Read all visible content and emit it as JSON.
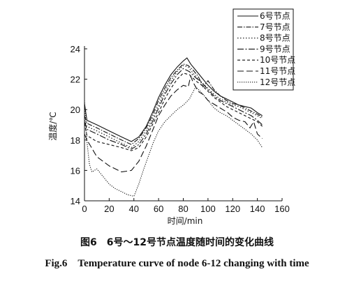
{
  "caption": {
    "cn": "图6　6号～12号节点温度随时间的变化曲线",
    "en": "Fig.6　Temperature curve of node 6-12 changing with time"
  },
  "chart_data": {
    "type": "line",
    "title": "",
    "xlabel": "时间/min",
    "ylabel": "温度/℃",
    "xlim": [
      0,
      160
    ],
    "ylim": [
      14,
      24
    ],
    "xticks": [
      0,
      20,
      40,
      60,
      80,
      100,
      120,
      140,
      160
    ],
    "yticks": [
      14,
      16,
      18,
      20,
      22,
      24
    ],
    "grid": false,
    "legend_position": "top-right",
    "series": [
      {
        "name": "6号节点",
        "dash": "solid",
        "x": [
          0,
          2,
          10,
          20,
          30,
          38,
          44,
          50,
          55,
          60,
          65,
          70,
          75,
          80,
          83,
          86,
          90,
          95,
          100,
          105,
          110,
          115,
          120,
          125,
          130,
          135,
          140,
          144
        ],
        "y": [
          20.4,
          19.3,
          19.0,
          18.6,
          18.2,
          17.9,
          18.2,
          18.9,
          19.8,
          20.8,
          21.6,
          22.3,
          22.8,
          23.2,
          23.4,
          23.0,
          22.6,
          22.1,
          21.6,
          21.2,
          20.9,
          20.7,
          20.5,
          20.3,
          20.2,
          20.1,
          19.8,
          19.6
        ]
      },
      {
        "name": "7号节点",
        "dash": "dashdot",
        "x": [
          0,
          2,
          10,
          20,
          30,
          38,
          44,
          50,
          55,
          60,
          65,
          70,
          75,
          80,
          84,
          88,
          92,
          96,
          100,
          105,
          110,
          115,
          120,
          125,
          130,
          135,
          140,
          144
        ],
        "y": [
          19.6,
          19.1,
          18.8,
          18.4,
          18.0,
          17.7,
          18.1,
          18.8,
          19.6,
          20.6,
          21.4,
          22.1,
          22.6,
          23.0,
          22.9,
          22.6,
          22.2,
          21.5,
          21.9,
          21.3,
          20.9,
          20.6,
          20.4,
          20.3,
          20.1,
          19.9,
          19.7,
          19.5
        ]
      },
      {
        "name": "8号节点",
        "dash": "dotted",
        "x": [
          0,
          2,
          10,
          20,
          30,
          38,
          44,
          50,
          55,
          60,
          65,
          70,
          75,
          80,
          84,
          88,
          92,
          96,
          100,
          105,
          110,
          115,
          120,
          125,
          130,
          135,
          140,
          144
        ],
        "y": [
          19.3,
          18.9,
          18.6,
          18.2,
          17.8,
          17.5,
          17.9,
          18.6,
          19.4,
          20.3,
          21.2,
          21.9,
          22.5,
          22.9,
          22.8,
          22.4,
          22.0,
          21.7,
          21.4,
          21.0,
          20.7,
          20.5,
          20.3,
          20.2,
          20.0,
          19.8,
          19.6,
          19.4
        ]
      },
      {
        "name": "9号节点",
        "dash": "longdash-dot",
        "x": [
          0,
          2,
          10,
          20,
          30,
          38,
          44,
          50,
          55,
          60,
          65,
          70,
          75,
          80,
          85,
          90,
          95,
          100,
          105,
          110,
          115,
          120,
          125,
          130,
          135,
          140,
          144
        ],
        "y": [
          19.2,
          18.7,
          18.4,
          18.0,
          17.7,
          17.4,
          17.7,
          18.4,
          19.2,
          20.1,
          21.0,
          21.7,
          22.3,
          22.7,
          22.5,
          22.1,
          21.8,
          21.3,
          20.9,
          20.6,
          20.4,
          20.2,
          20.0,
          19.8,
          19.6,
          19.3,
          19.0
        ]
      },
      {
        "name": "10号节点",
        "dash": "dashed",
        "x": [
          0,
          2,
          10,
          20,
          30,
          38,
          44,
          50,
          55,
          60,
          65,
          70,
          75,
          80,
          85,
          90,
          95,
          100,
          105,
          110,
          115,
          120,
          125,
          130,
          135,
          140,
          144
        ],
        "y": [
          19.1,
          18.3,
          17.9,
          17.7,
          17.5,
          17.3,
          17.5,
          18.2,
          19.0,
          19.8,
          20.7,
          21.4,
          22.0,
          22.4,
          22.3,
          21.9,
          21.6,
          21.2,
          20.8,
          20.5,
          20.2,
          20.0,
          19.8,
          19.6,
          19.4,
          19.2,
          18.9
        ]
      },
      {
        "name": "11号节点",
        "dash": "longdash",
        "x": [
          0,
          2,
          5,
          10,
          20,
          30,
          38,
          44,
          50,
          55,
          60,
          65,
          70,
          75,
          80,
          84,
          86,
          88,
          92,
          96,
          100,
          104,
          108,
          112,
          116,
          120,
          125,
          130,
          134,
          137,
          140,
          144
        ],
        "y": [
          18.4,
          18.0,
          17.6,
          16.9,
          16.3,
          15.9,
          16.0,
          16.6,
          17.6,
          18.6,
          19.6,
          20.3,
          20.9,
          21.3,
          21.6,
          21.5,
          22.2,
          21.8,
          21.2,
          21.0,
          20.6,
          20.4,
          20.2,
          20.0,
          19.8,
          19.5,
          19.3,
          19.2,
          18.8,
          19.2,
          18.4,
          18.1
        ]
      },
      {
        "name": "12号节点",
        "dash": "densedot",
        "x": [
          0,
          2,
          4,
          6,
          8,
          10,
          15,
          20,
          25,
          30,
          35,
          40,
          44,
          48,
          52,
          56,
          60,
          65,
          70,
          75,
          80,
          85,
          90,
          95,
          100,
          105,
          110,
          115,
          120,
          125,
          130,
          135,
          140,
          144
        ],
        "y": [
          20.6,
          17.9,
          16.4,
          15.9,
          16.0,
          16.1,
          15.6,
          15.1,
          14.8,
          14.6,
          14.4,
          14.3,
          15.1,
          16.1,
          17.0,
          17.9,
          18.6,
          19.2,
          19.6,
          20.0,
          20.3,
          20.7,
          21.5,
          21.1,
          20.6,
          20.1,
          19.8,
          19.6,
          19.3,
          19.0,
          18.7,
          18.4,
          18.0,
          17.5
        ]
      }
    ]
  }
}
